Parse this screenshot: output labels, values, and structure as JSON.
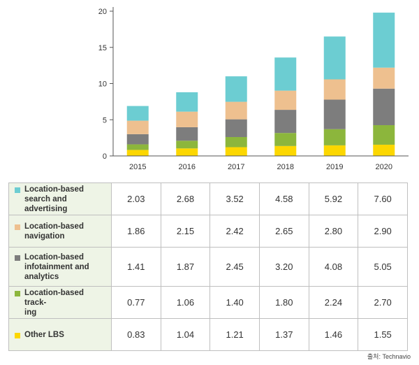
{
  "chart_data": {
    "type": "bar",
    "stacked": true,
    "categories": [
      "2015",
      "2016",
      "2017",
      "2018",
      "2019",
      "2020"
    ],
    "ylim": [
      0,
      20
    ],
    "yticks": [
      0,
      5,
      10,
      15,
      20
    ],
    "grid": false,
    "series": [
      {
        "name": "Other LBS",
        "color": "#fcd700",
        "values": [
          0.83,
          1.04,
          1.21,
          1.37,
          1.46,
          1.55
        ]
      },
      {
        "name": "Location-based tracking",
        "color": "#8cb63c",
        "values": [
          0.77,
          1.06,
          1.4,
          1.8,
          2.24,
          2.7
        ]
      },
      {
        "name": "Location-based infotainment and analytics",
        "color": "#7d7d7d",
        "values": [
          1.41,
          1.87,
          2.45,
          3.2,
          4.08,
          5.05
        ]
      },
      {
        "name": "Location-based navigation",
        "color": "#eec08f",
        "values": [
          1.86,
          2.15,
          2.42,
          2.65,
          2.8,
          2.9
        ]
      },
      {
        "name": "Location-based search and advertising",
        "color": "#6ccdd2",
        "values": [
          2.03,
          2.68,
          3.52,
          4.58,
          5.92,
          7.6
        ]
      }
    ]
  },
  "table": {
    "rows": [
      {
        "label": "Location-based\nsearch and advertising",
        "color": "#6ccdd2",
        "values": [
          "2.03",
          "2.68",
          "3.52",
          "4.58",
          "5.92",
          "7.60"
        ]
      },
      {
        "label": "Location-based\nnavigation",
        "color": "#eec08f",
        "values": [
          "1.86",
          "2.15",
          "2.42",
          "2.65",
          "2.80",
          "2.90"
        ]
      },
      {
        "label": "Location-based\ninfotainment and\nanalytics",
        "color": "#7d7d7d",
        "values": [
          "1.41",
          "1.87",
          "2.45",
          "3.20",
          "4.08",
          "5.05"
        ]
      },
      {
        "label": "Location-based track-\ning",
        "color": "#8cb63c",
        "values": [
          "0.77",
          "1.06",
          "1.40",
          "1.80",
          "2.24",
          "2.70"
        ]
      },
      {
        "label": "Other LBS",
        "color": "#fcd700",
        "values": [
          "0.83",
          "1.04",
          "1.21",
          "1.37",
          "1.46",
          "1.55"
        ]
      }
    ]
  },
  "source": "출처: Technavio"
}
